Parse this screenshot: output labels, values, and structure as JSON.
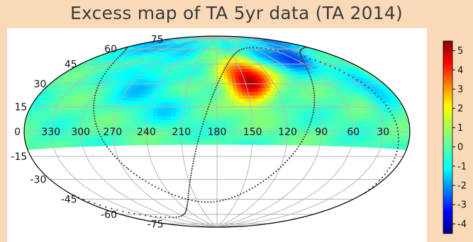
{
  "chart_data": {
    "type": "heatmap",
    "title": "Excess map of TA 5yr data (TA 2014)",
    "projection": "hammer-aitoff",
    "coordinate_frame": "equatorial",
    "ra_axis": {
      "direction": "decreasing-to-right",
      "tick_labels": [
        "330",
        "300",
        "270",
        "240",
        "210",
        "180",
        "150",
        "120",
        "90",
        "60",
        "30"
      ],
      "tick_values": [
        330,
        300,
        270,
        240,
        210,
        180,
        150,
        120,
        90,
        60,
        30
      ]
    },
    "dec_axis": {
      "tick_labels": [
        "75",
        "60",
        "45",
        "30",
        "15",
        "0",
        "-15",
        "-30",
        "-45",
        "-60",
        "-75"
      ],
      "tick_values": [
        75,
        60,
        45,
        30,
        15,
        0,
        -15,
        -30,
        -45,
        -60,
        -75
      ]
    },
    "data_coverage_dec_min": -11,
    "no_data_color": "#ffffff",
    "grid": true,
    "colormap": "jet",
    "colorbar": {
      "range": [
        -4.5,
        5.5
      ],
      "tick_labels": [
        "5",
        "4",
        "3",
        "2",
        "1",
        "0",
        "-1",
        "-2",
        "-3",
        "-4"
      ],
      "tick_values": [
        5,
        4,
        3,
        2,
        1,
        0,
        -1,
        -2,
        -3,
        -4
      ]
    },
    "hotspot": {
      "ra": 146.7,
      "dec": 43.2,
      "peak_sigma": 5.1
    },
    "galactic_plane_style": "dotted"
  }
}
